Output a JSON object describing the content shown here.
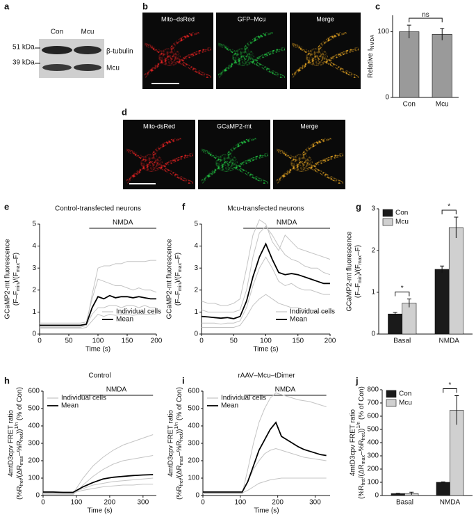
{
  "figure": {
    "a": {
      "panel": "a",
      "lanes": [
        "Con",
        "Mcu"
      ],
      "markers": [
        "51 kDa",
        "39 kDa"
      ],
      "bands": [
        "β-tubulin",
        "Mcu"
      ]
    },
    "b": {
      "panel": "b",
      "images": [
        "Mito–dsRed",
        "GFP–Mcu",
        "Merge"
      ]
    },
    "d": {
      "panel": "d",
      "images": [
        "Mito-dsRed",
        "GCaMP2-mt",
        "Merge"
      ]
    }
  },
  "chart_data": [
    {
      "type": "bar",
      "panel": "c",
      "ylabel": [
        [
          "Relative I",
          {
            "sub": "NMDA"
          }
        ]
      ],
      "categories": [
        "Con",
        "Mcu"
      ],
      "values": [
        100,
        96
      ],
      "errors": [
        10,
        9
      ],
      "color": "#9a9a9a",
      "ylim": [
        0,
        125
      ],
      "yticks": [
        0,
        100
      ],
      "annotations": [
        {
          "text": "ns",
          "categories": [
            0,
            1
          ]
        }
      ]
    },
    {
      "type": "line",
      "panel": "e",
      "title": "Control-transfected neurons",
      "xlabel": "Time (s)",
      "ylabel": [
        "GCaMP2-mt fluorescence",
        [
          "(F–F",
          {
            "sub": "min"
          },
          ")/(F",
          {
            "sub": "max"
          },
          "–F)"
        ]
      ],
      "band": {
        "label": "NMDA",
        "start": 85,
        "end": 200
      },
      "x": [
        0,
        10,
        20,
        30,
        40,
        50,
        60,
        70,
        80,
        90,
        100,
        110,
        120,
        130,
        140,
        150,
        160,
        170,
        180,
        190,
        200
      ],
      "xlim": [
        0,
        200
      ],
      "xticks": [
        0,
        50,
        100,
        150,
        200
      ],
      "ylim": [
        0,
        5
      ],
      "yticks": [
        0,
        1,
        2,
        3,
        4,
        5
      ],
      "legend": "lower right",
      "series": [
        {
          "name": "Individual cells",
          "color": "#c4c4c4",
          "values": [
            0.3,
            0.3,
            0.3,
            0.3,
            0.3,
            0.3,
            0.3,
            0.3,
            0.4,
            1.8,
            3.0,
            3.1,
            3.1,
            3.2,
            3.2,
            3.3,
            3.3,
            3.3,
            3.3,
            3.35,
            3.35
          ]
        },
        {
          "color": "#c4c4c4",
          "values": [
            0.5,
            0.5,
            0.5,
            0.5,
            0.5,
            0.5,
            0.5,
            0.5,
            0.55,
            1.6,
            2.5,
            2.4,
            2.3,
            2.2,
            2.2,
            2.1,
            2.0,
            2.1,
            2.0,
            2.0,
            1.9
          ]
        },
        {
          "color": "#c4c4c4",
          "values": [
            0.35,
            0.35,
            0.35,
            0.35,
            0.35,
            0.35,
            0.35,
            0.35,
            0.4,
            0.9,
            1.2,
            1.2,
            1.3,
            1.3,
            1.2,
            1.3,
            1.3,
            1.2,
            1.3,
            1.2,
            1.2
          ]
        },
        {
          "color": "#c4c4c4",
          "values": [
            0.25,
            0.25,
            0.25,
            0.25,
            0.25,
            0.25,
            0.25,
            0.25,
            0.3,
            0.6,
            0.9,
            0.8,
            0.9,
            0.85,
            0.9,
            0.9,
            0.85,
            0.9,
            0.9,
            0.9,
            0.9
          ]
        },
        {
          "name": "Mean",
          "color": "#000000",
          "values": [
            0.4,
            0.4,
            0.4,
            0.4,
            0.4,
            0.4,
            0.4,
            0.4,
            0.45,
            1.2,
            1.7,
            1.6,
            1.75,
            1.65,
            1.7,
            1.7,
            1.65,
            1.7,
            1.65,
            1.6,
            1.6
          ]
        }
      ]
    },
    {
      "type": "line",
      "panel": "f",
      "title": "Mcu-transfected neurons",
      "xlabel": "Time (s)",
      "ylabel": [
        "GCaMP2-mt fluorescence",
        [
          "(F–F",
          {
            "sub": "min"
          },
          ")/(F",
          {
            "sub": "max"
          },
          "–F)"
        ]
      ],
      "band": {
        "label": "NMDA",
        "start": 65,
        "end": 200
      },
      "x": [
        0,
        10,
        20,
        30,
        40,
        50,
        60,
        70,
        80,
        90,
        100,
        110,
        120,
        130,
        140,
        150,
        160,
        170,
        180,
        190,
        200
      ],
      "xlim": [
        0,
        200
      ],
      "xticks": [
        0,
        50,
        100,
        150,
        200
      ],
      "ylim": [
        0,
        5
      ],
      "yticks": [
        0,
        1,
        2,
        3,
        4,
        5
      ],
      "legend": "lower right",
      "series": [
        {
          "name": "Individual cells",
          "color": "#c4c4c4",
          "values": [
            1.5,
            1.4,
            1.4,
            1.3,
            1.3,
            1.4,
            1.6,
            3.0,
            4.5,
            5.2,
            5.0,
            4.2,
            3.8,
            4.5,
            4.2,
            3.9,
            3.8,
            3.7,
            3.6,
            3.5,
            3.4
          ]
        },
        {
          "color": "#c4c4c4",
          "values": [
            0.5,
            0.5,
            0.5,
            0.45,
            0.5,
            0.5,
            0.6,
            1.2,
            2.2,
            3.0,
            3.5,
            3.0,
            2.4,
            2.2,
            2.3,
            2.1,
            2.0,
            2.0,
            1.9,
            1.8,
            1.8
          ]
        },
        {
          "color": "#c4c4c4",
          "values": [
            0.3,
            0.3,
            0.3,
            0.3,
            0.3,
            0.3,
            0.4,
            0.8,
            1.3,
            1.6,
            1.8,
            1.6,
            1.4,
            1.3,
            1.2,
            1.2,
            1.1,
            1.1,
            1.0,
            1.0,
            1.0
          ]
        },
        {
          "color": "#c4c4c4",
          "values": [
            1.1,
            1.0,
            1.0,
            1.0,
            1.0,
            1.0,
            1.1,
            2.0,
            3.5,
            4.6,
            4.9,
            4.5,
            4.0,
            3.6,
            3.4,
            3.3,
            3.1,
            3.0,
            3.0,
            2.8,
            2.7
          ]
        },
        {
          "name": "Mean",
          "color": "#000000",
          "values": [
            0.8,
            0.78,
            0.75,
            0.72,
            0.75,
            0.7,
            0.8,
            1.5,
            2.6,
            3.5,
            4.1,
            3.4,
            2.8,
            2.7,
            2.75,
            2.7,
            2.6,
            2.5,
            2.4,
            2.3,
            2.3
          ]
        }
      ]
    },
    {
      "type": "bar",
      "panel": "g",
      "ylabel": [
        "GCaMP2-mt fluorescence",
        [
          "(F–F",
          {
            "sub": "min"
          },
          ")/(F",
          {
            "sub": "max"
          },
          "–F)"
        ]
      ],
      "categories": [
        "Basal",
        "NMDA"
      ],
      "ylim": [
        0,
        3
      ],
      "yticks": [
        0,
        1,
        2,
        3
      ],
      "legend": "upper left",
      "series": [
        {
          "name": "Con",
          "color": "#1a1a1a",
          "values": [
            0.48,
            1.55
          ],
          "errors": [
            0.04,
            0.08
          ]
        },
        {
          "name": "Mcu",
          "color": "#d0d0d0",
          "values": [
            0.74,
            2.55
          ],
          "errors": [
            0.1,
            0.25
          ]
        }
      ],
      "annotations": [
        {
          "text": "*",
          "categories": [
            0
          ]
        },
        {
          "text": "*",
          "categories": [
            1
          ]
        }
      ]
    },
    {
      "type": "line",
      "panel": "h",
      "title": "Control",
      "xlabel": "Time (s)",
      "ylabel": [
        "4mtD3cpv FRET ratio",
        [
          "(%R",
          {
            "sub": "fret"
          },
          "/(ΔR",
          {
            "sub": "max"
          },
          "–%R",
          {
            "sub": "fret"
          },
          "))",
          {
            "sup": "1/n"
          },
          " (% of Con)"
        ]
      ],
      "band": {
        "label": "NMDA",
        "start": 110,
        "end": 330
      },
      "x": [
        0,
        30,
        60,
        90,
        120,
        150,
        180,
        210,
        240,
        270,
        300,
        330
      ],
      "xlim": [
        0,
        340
      ],
      "xticks": [
        0,
        100,
        200,
        300
      ],
      "ylim": [
        0,
        600
      ],
      "yticks": [
        0,
        100,
        200,
        300,
        400,
        500,
        600
      ],
      "legend": "upper left",
      "series": [
        {
          "name": "Individual cells",
          "color": "#c4c4c4",
          "values": [
            10,
            10,
            10,
            10,
            100,
            170,
            220,
            260,
            290,
            310,
            330,
            350
          ]
        },
        {
          "color": "#c4c4c4",
          "values": [
            20,
            20,
            20,
            20,
            40,
            60,
            70,
            80,
            85,
            90,
            95,
            100
          ]
        },
        {
          "color": "#c4c4c4",
          "values": [
            15,
            15,
            15,
            15,
            30,
            40,
            50,
            55,
            60,
            60,
            65,
            65
          ]
        },
        {
          "color": "#c4c4c4",
          "values": [
            5,
            5,
            5,
            5,
            60,
            110,
            150,
            180,
            200,
            210,
            220,
            230
          ]
        },
        {
          "name": "Mean",
          "color": "#000000",
          "values": [
            20,
            20,
            18,
            18,
            50,
            75,
            95,
            105,
            110,
            115,
            118,
            120
          ]
        }
      ]
    },
    {
      "type": "line",
      "panel": "i",
      "title": "rAAV–Mcu–tDimer",
      "xlabel": "Time (s)",
      "ylabel": [
        "4mtD3cpv FRET ratio",
        [
          "(%R",
          {
            "sub": "fret"
          },
          "/(ΔR",
          {
            "sub": "max"
          },
          "–%R",
          {
            "sub": "fret"
          },
          "))",
          {
            "sup": "1/n"
          },
          " (% of Con)"
        ]
      ],
      "band": {
        "label": "NMDA",
        "start": 110,
        "end": 330
      },
      "x": [
        0,
        15,
        30,
        45,
        60,
        75,
        90,
        105,
        120,
        135,
        150,
        165,
        180,
        195,
        210,
        225,
        240,
        255,
        270,
        285,
        300,
        315,
        330
      ],
      "xlim": [
        0,
        340
      ],
      "xticks": [
        0,
        100,
        200,
        300
      ],
      "ylim": [
        0,
        600
      ],
      "yticks": [
        0,
        100,
        200,
        300,
        400,
        500,
        600
      ],
      "legend": "upper left",
      "series": [
        {
          "name": "Individual cells",
          "color": "#c4c4c4",
          "values": [
            10,
            10,
            10,
            10,
            10,
            10,
            10,
            10,
            150,
            300,
            420,
            500,
            560,
            590,
            580,
            570,
            560,
            550,
            545,
            540,
            530,
            520,
            510
          ]
        },
        {
          "color": "#c4c4c4",
          "values": [
            20,
            20,
            20,
            20,
            20,
            20,
            20,
            20,
            80,
            150,
            200,
            240,
            260,
            270,
            260,
            250,
            240,
            230,
            220,
            215,
            210,
            205,
            200
          ]
        },
        {
          "color": "#c4c4c4",
          "values": [
            15,
            15,
            15,
            15,
            15,
            15,
            15,
            15,
            30,
            50,
            70,
            80,
            90,
            95,
            100,
            100,
            100,
            100,
            100,
            100,
            100,
            100,
            100
          ]
        },
        {
          "name": "Mean",
          "color": "#000000",
          "values": [
            20,
            20,
            20,
            20,
            20,
            20,
            20,
            20,
            80,
            170,
            260,
            320,
            380,
            420,
            340,
            320,
            300,
            280,
            265,
            255,
            245,
            235,
            230
          ]
        }
      ]
    },
    {
      "type": "bar",
      "panel": "j",
      "ylabel": [
        "4mtD3cpv FRET ratio",
        [
          "(%R",
          {
            "sub": "fret"
          },
          "/(ΔR",
          {
            "sub": "max"
          },
          "–%R",
          {
            "sub": "fret"
          },
          "))",
          {
            "sup": "1/n"
          },
          " (% of Con)"
        ]
      ],
      "categories": [
        "Basal",
        "NMDA"
      ],
      "ylim": [
        0,
        800
      ],
      "yticks": [
        0,
        100,
        200,
        300,
        400,
        500,
        600,
        700,
        800
      ],
      "legend": "upper left",
      "series": [
        {
          "name": "Con",
          "color": "#1a1a1a",
          "values": [
            15,
            100
          ],
          "errors": [
            2,
            3
          ]
        },
        {
          "name": "Mcu",
          "color": "#d0d0d0",
          "values": [
            15,
            645
          ],
          "errors": [
            10,
            110
          ]
        }
      ],
      "annotations": [
        {
          "text": "*",
          "categories": [
            1
          ]
        }
      ]
    }
  ]
}
